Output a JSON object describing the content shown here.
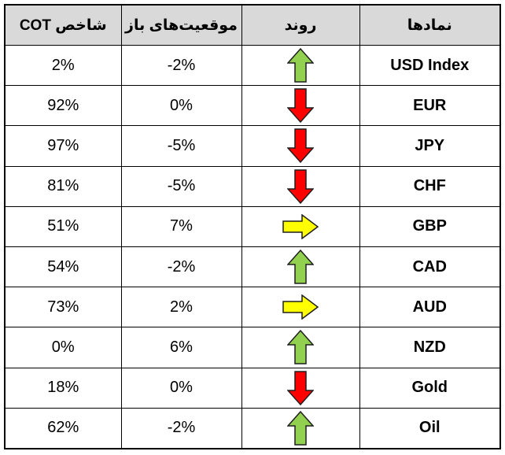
{
  "headers": {
    "cot_index": "شاخص COT",
    "open_positions": "موقعیت‌های باز",
    "trend": "روند",
    "symbols": "نمادها"
  },
  "rows": [
    {
      "symbol": "USD Index",
      "trend": "up",
      "trend_icon": "green-up-arrow-icon",
      "open_positions": "-2%",
      "cot_index": "2%"
    },
    {
      "symbol": "EUR",
      "trend": "down",
      "trend_icon": "red-down-arrow-icon",
      "open_positions": "0%",
      "cot_index": "92%"
    },
    {
      "symbol": "JPY",
      "trend": "down",
      "trend_icon": "red-down-arrow-icon",
      "open_positions": "-5%",
      "cot_index": "97%"
    },
    {
      "symbol": "CHF",
      "trend": "down",
      "trend_icon": "red-down-arrow-icon",
      "open_positions": "-5%",
      "cot_index": "81%"
    },
    {
      "symbol": "GBP",
      "trend": "right",
      "trend_icon": "yellow-right-arrow-icon",
      "open_positions": "7%",
      "cot_index": "51%"
    },
    {
      "symbol": "CAD",
      "trend": "up",
      "trend_icon": "green-up-arrow-icon",
      "open_positions": "-2%",
      "cot_index": "54%"
    },
    {
      "symbol": "AUD",
      "trend": "right",
      "trend_icon": "yellow-right-arrow-icon",
      "open_positions": "2%",
      "cot_index": "73%"
    },
    {
      "symbol": "NZD",
      "trend": "up",
      "trend_icon": "green-up-arrow-icon",
      "open_positions": "6%",
      "cot_index": "0%"
    },
    {
      "symbol": "Gold",
      "trend": "down",
      "trend_icon": "red-down-arrow-icon",
      "open_positions": "0%",
      "cot_index": "18%"
    },
    {
      "symbol": "Oil",
      "trend": "up",
      "trend_icon": "green-up-arrow-icon",
      "open_positions": "-2%",
      "cot_index": "62%"
    }
  ],
  "colors": {
    "header_bg": "#d9d9d9",
    "up": "#92d050",
    "down": "#ff0000",
    "right": "#ffff00",
    "border": "#000000"
  }
}
